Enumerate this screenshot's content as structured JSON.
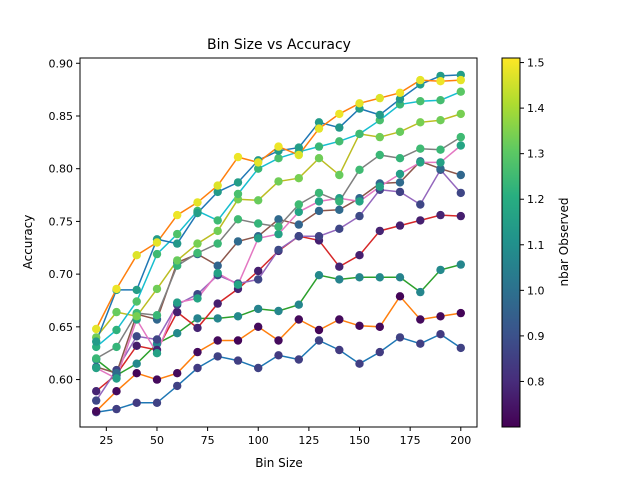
{
  "chart_data": {
    "type": "scatter",
    "title": "Bin Size vs Accuracy",
    "xlabel": "Bin Size",
    "ylabel": "Accuracy",
    "xlim": [
      12,
      208
    ],
    "ylim": [
      0.555,
      0.905
    ],
    "xticks": [
      25,
      50,
      75,
      100,
      125,
      150,
      175,
      200
    ],
    "yticks": [
      0.6,
      0.65,
      0.7,
      0.75,
      0.8,
      0.85,
      0.9
    ],
    "x": [
      20,
      30,
      40,
      50,
      60,
      70,
      80,
      90,
      100,
      110,
      120,
      130,
      140,
      150,
      160,
      170,
      180,
      190,
      200
    ],
    "grid": false,
    "legend": "none",
    "colorbar": {
      "label": "nbar Observed",
      "min": 0.7,
      "max": 1.51,
      "ticks": [
        0.8,
        0.9,
        1.0,
        1.1,
        1.2,
        1.3,
        1.4,
        1.5
      ],
      "colormap": "viridis"
    },
    "series": [
      {
        "line_color": "#1f77b4",
        "y": [
          0.569,
          0.572,
          0.578,
          0.578,
          0.594,
          0.611,
          0.622,
          0.618,
          0.611,
          0.623,
          0.619,
          0.637,
          0.628,
          0.615,
          0.626,
          0.64,
          0.634,
          0.643,
          0.63
        ],
        "nbar": [
          0.83,
          0.85,
          0.84,
          0.86,
          0.86,
          0.84,
          0.86,
          0.85,
          0.86,
          0.84,
          0.85,
          0.86,
          0.84,
          0.85,
          0.84,
          0.86,
          0.85,
          0.84,
          0.86
        ]
      },
      {
        "line_color": "#ff7f0e",
        "y": [
          0.57,
          0.589,
          0.606,
          0.6,
          0.606,
          0.626,
          0.637,
          0.637,
          0.65,
          0.637,
          0.657,
          0.647,
          0.657,
          0.651,
          0.65,
          0.679,
          0.657,
          0.66,
          0.663
        ],
        "nbar": [
          0.72,
          0.72,
          0.71,
          0.72,
          0.72,
          0.72,
          0.72,
          0.71,
          0.72,
          0.72,
          0.72,
          0.71,
          0.72,
          0.72,
          0.72,
          0.71,
          0.72,
          0.72,
          0.71
        ]
      },
      {
        "line_color": "#2ca02c",
        "y": [
          0.619,
          0.604,
          0.615,
          0.634,
          0.644,
          0.658,
          0.658,
          0.66,
          0.667,
          0.665,
          0.671,
          0.699,
          0.695,
          0.697,
          0.697,
          0.697,
          0.683,
          0.704,
          0.709
        ],
        "nbar": [
          1.07,
          1.06,
          1.08,
          1.07,
          1.08,
          1.06,
          1.07,
          1.08,
          1.06,
          1.07,
          1.07,
          1.08,
          1.06,
          1.07,
          1.08,
          1.06,
          1.07,
          1.08,
          1.07
        ]
      },
      {
        "line_color": "#d62728",
        "y": [
          0.589,
          0.605,
          0.632,
          0.628,
          0.664,
          0.649,
          0.672,
          0.686,
          0.703,
          0.722,
          0.736,
          0.732,
          0.707,
          0.718,
          0.741,
          0.746,
          0.751,
          0.756,
          0.755
        ],
        "nbar": [
          0.78,
          0.77,
          0.76,
          0.78,
          0.77,
          0.78,
          0.77,
          0.78,
          0.77,
          0.77,
          0.78,
          0.77,
          0.78,
          0.77,
          0.78,
          0.77,
          0.77,
          0.78,
          0.77
        ]
      },
      {
        "line_color": "#9467bd",
        "y": [
          0.58,
          0.609,
          0.641,
          0.638,
          0.671,
          0.681,
          0.699,
          0.691,
          0.695,
          0.723,
          0.736,
          0.736,
          0.743,
          0.755,
          0.78,
          0.778,
          0.766,
          0.799,
          0.777
        ],
        "nbar": [
          0.87,
          0.86,
          0.88,
          0.87,
          0.86,
          0.88,
          0.87,
          0.86,
          0.87,
          0.88,
          0.87,
          0.86,
          0.87,
          0.88,
          0.87,
          0.86,
          0.87,
          0.88,
          0.87
        ]
      },
      {
        "line_color": "#8c564b",
        "y": [
          0.612,
          0.606,
          0.662,
          0.657,
          0.711,
          0.719,
          0.708,
          0.731,
          0.736,
          0.752,
          0.747,
          0.76,
          0.761,
          0.772,
          0.786,
          0.787,
          0.807,
          0.8,
          0.794
        ],
        "nbar": [
          0.97,
          0.98,
          0.96,
          0.97,
          0.98,
          0.97,
          0.96,
          0.98,
          0.97,
          0.98,
          0.96,
          0.97,
          0.98,
          0.97,
          0.96,
          0.98,
          0.97,
          0.98,
          0.97
        ]
      },
      {
        "line_color": "#e377c2",
        "y": [
          0.611,
          0.601,
          0.657,
          0.625,
          0.673,
          0.677,
          0.701,
          0.69,
          0.734,
          0.738,
          0.759,
          0.769,
          0.772,
          0.769,
          0.783,
          0.795,
          0.806,
          0.806,
          0.822
        ],
        "nbar": [
          1.16,
          1.15,
          1.17,
          1.16,
          1.15,
          1.17,
          1.16,
          1.17,
          1.15,
          1.16,
          1.17,
          1.16,
          1.15,
          1.17,
          1.16,
          1.15,
          1.17,
          1.16,
          1.17
        ]
      },
      {
        "line_color": "#7f7f7f",
        "y": [
          0.62,
          0.631,
          0.663,
          0.661,
          0.708,
          0.72,
          0.729,
          0.752,
          0.748,
          0.745,
          0.766,
          0.777,
          0.769,
          0.799,
          0.813,
          0.81,
          0.819,
          0.818,
          0.83
        ],
        "nbar": [
          1.24,
          1.23,
          1.25,
          1.24,
          1.23,
          1.25,
          1.24,
          1.25,
          1.23,
          1.24,
          1.25,
          1.24,
          1.23,
          1.25,
          1.24,
          1.23,
          1.25,
          1.24,
          1.25
        ]
      },
      {
        "line_color": "#bcbd22",
        "y": [
          0.64,
          0.664,
          0.66,
          0.686,
          0.713,
          0.729,
          0.741,
          0.771,
          0.77,
          0.788,
          0.791,
          0.81,
          0.794,
          0.833,
          0.83,
          0.835,
          0.844,
          0.846,
          0.852
        ],
        "nbar": [
          1.33,
          1.32,
          1.34,
          1.33,
          1.32,
          1.34,
          1.33,
          1.34,
          1.32,
          1.33,
          1.34,
          1.33,
          1.32,
          1.34,
          1.33,
          1.32,
          1.34,
          1.33,
          1.34
        ]
      },
      {
        "line_color": "#17becf",
        "y": [
          0.631,
          0.647,
          0.674,
          0.719,
          0.738,
          0.76,
          0.751,
          0.776,
          0.8,
          0.81,
          0.816,
          0.821,
          0.826,
          0.833,
          0.846,
          0.861,
          0.864,
          0.865,
          0.873
        ],
        "nbar": [
          1.21,
          1.22,
          1.28,
          1.25,
          1.28,
          1.24,
          1.25,
          1.27,
          1.24,
          1.27,
          1.25,
          1.24,
          1.26,
          1.25,
          1.27,
          1.24,
          1.27,
          1.26,
          1.3
        ]
      },
      {
        "line_color": "#1f77b4",
        "y": [
          0.636,
          0.685,
          0.685,
          0.733,
          0.729,
          0.758,
          0.778,
          0.787,
          0.808,
          0.817,
          0.82,
          0.844,
          0.839,
          0.857,
          0.851,
          0.866,
          0.88,
          0.888,
          0.889
        ],
        "nbar": [
          1.14,
          1.13,
          1.15,
          1.14,
          1.13,
          1.15,
          1.14,
          1.15,
          1.13,
          1.14,
          1.15,
          1.14,
          1.13,
          1.15,
          1.14,
          1.13,
          1.15,
          1.14,
          1.15
        ]
      },
      {
        "line_color": "#ff7f0e",
        "y": [
          0.648,
          0.686,
          0.718,
          0.73,
          0.756,
          0.768,
          0.784,
          0.811,
          0.806,
          0.821,
          0.813,
          0.838,
          0.852,
          0.862,
          0.867,
          0.872,
          0.884,
          0.883,
          0.884
        ],
        "nbar": [
          1.48,
          1.49,
          1.47,
          1.48,
          1.49,
          1.48,
          1.47,
          1.49,
          1.48,
          1.49,
          1.47,
          1.48,
          1.49,
          1.48,
          1.47,
          1.49,
          1.48,
          1.49,
          1.48
        ]
      }
    ]
  }
}
